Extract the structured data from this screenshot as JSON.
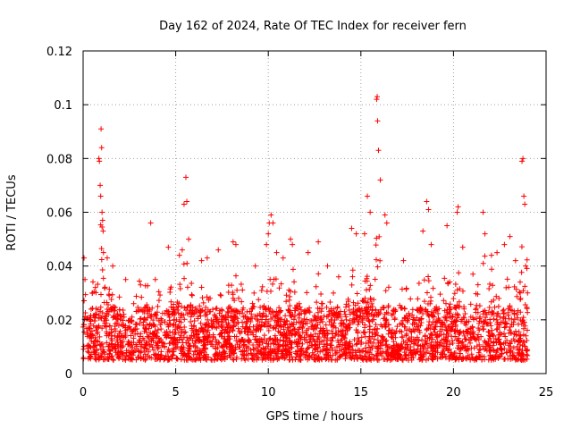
{
  "chart_data": {
    "type": "scatter",
    "title": "Day 162 of 2024, Rate Of TEC Index for receiver fern",
    "xlabel": "GPS time / hours",
    "ylabel": "ROTI / TECUs",
    "xlim": [
      0,
      25
    ],
    "ylim": [
      0,
      0.12
    ],
    "x_ticks": [
      0,
      5,
      10,
      15,
      20,
      25
    ],
    "x_tick_labels": [
      "0",
      "5",
      "10",
      "15",
      "20",
      "25"
    ],
    "y_ticks": [
      0,
      0.02,
      0.04,
      0.06,
      0.08,
      0.1,
      0.12
    ],
    "y_tick_labels": [
      "0",
      "0.02",
      "0.04",
      "0.06",
      "0.08",
      "0.1",
      "0.12"
    ],
    "grid": true,
    "marker": "plus",
    "color": "#ff0000",
    "series": [
      {
        "name": "ROTI",
        "data_range_hours": [
          0,
          24
        ],
        "typical_band": [
          0.005,
          0.025
        ],
        "points": [
          [
            0.05,
            0.043
          ],
          [
            0.1,
            0.035
          ],
          [
            0.5,
            0.03
          ],
          [
            0.85,
            0.08
          ],
          [
            0.88,
            0.079
          ],
          [
            0.92,
            0.07
          ],
          [
            0.95,
            0.066
          ],
          [
            0.97,
            0.091
          ],
          [
            1.0,
            0.084
          ],
          [
            1.02,
            0.06
          ],
          [
            1.05,
            0.057
          ],
          [
            1.08,
            0.053
          ],
          [
            1.1,
            0.045
          ],
          [
            1.3,
            0.043
          ],
          [
            1.6,
            0.04
          ],
          [
            2.3,
            0.035
          ],
          [
            3.1,
            0.033
          ],
          [
            3.65,
            0.056
          ],
          [
            3.9,
            0.035
          ],
          [
            4.6,
            0.047
          ],
          [
            5.2,
            0.044
          ],
          [
            5.35,
            0.046
          ],
          [
            5.45,
            0.063
          ],
          [
            5.55,
            0.073
          ],
          [
            5.6,
            0.064
          ],
          [
            5.7,
            0.05
          ],
          [
            6.4,
            0.042
          ],
          [
            6.7,
            0.043
          ],
          [
            7.3,
            0.046
          ],
          [
            8.1,
            0.049
          ],
          [
            8.25,
            0.048
          ],
          [
            9.3,
            0.04
          ],
          [
            9.9,
            0.048
          ],
          [
            10.0,
            0.052
          ],
          [
            10.05,
            0.056
          ],
          [
            10.15,
            0.059
          ],
          [
            10.25,
            0.056
          ],
          [
            10.45,
            0.045
          ],
          [
            10.8,
            0.043
          ],
          [
            11.2,
            0.05
          ],
          [
            11.3,
            0.048
          ],
          [
            12.15,
            0.045
          ],
          [
            12.7,
            0.049
          ],
          [
            13.2,
            0.04
          ],
          [
            13.8,
            0.036
          ],
          [
            14.5,
            0.054
          ],
          [
            14.75,
            0.052
          ],
          [
            15.2,
            0.052
          ],
          [
            15.35,
            0.066
          ],
          [
            15.5,
            0.06
          ],
          [
            15.85,
            0.102
          ],
          [
            15.88,
            0.103
          ],
          [
            15.9,
            0.094
          ],
          [
            15.95,
            0.083
          ],
          [
            16.05,
            0.072
          ],
          [
            16.3,
            0.059
          ],
          [
            16.4,
            0.056
          ],
          [
            17.3,
            0.042
          ],
          [
            18.35,
            0.053
          ],
          [
            18.55,
            0.064
          ],
          [
            18.65,
            0.061
          ],
          [
            18.8,
            0.048
          ],
          [
            19.65,
            0.055
          ],
          [
            20.2,
            0.06
          ],
          [
            20.25,
            0.062
          ],
          [
            20.5,
            0.047
          ],
          [
            21.05,
            0.037
          ],
          [
            21.6,
            0.06
          ],
          [
            21.7,
            0.052
          ],
          [
            22.05,
            0.044
          ],
          [
            22.35,
            0.045
          ],
          [
            22.75,
            0.048
          ],
          [
            23.05,
            0.051
          ],
          [
            23.35,
            0.042
          ],
          [
            23.7,
            0.079
          ],
          [
            23.75,
            0.08
          ],
          [
            23.8,
            0.066
          ],
          [
            23.85,
            0.063
          ],
          [
            23.9,
            0.04
          ],
          [
            24.0,
            0.03
          ]
        ]
      }
    ]
  }
}
